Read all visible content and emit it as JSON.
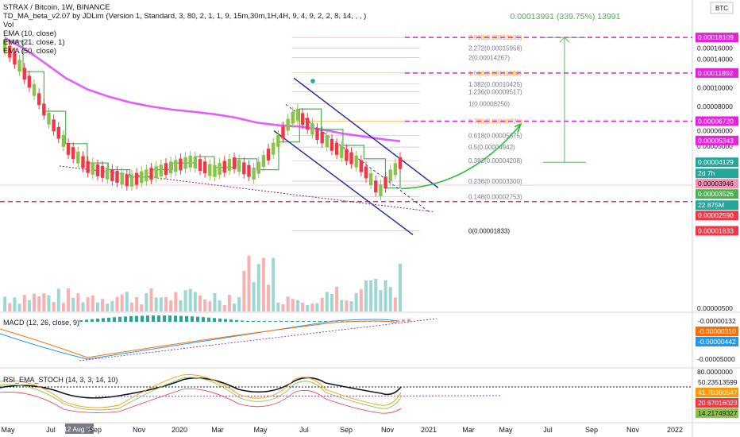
{
  "header": {
    "title": "STRAX / Bitcoin, 1W, BINANCE",
    "indicators": [
      "TD_MA_beta_v2.07 by JDLim (Version 1, Standard, 3, 80, 2, 1, 1, 9, 15m,30m,1H,4H, 9, 4, 9, 2, 2, 8, 14, , , )",
      "Vol",
      "EMA (10, close)",
      "EMA (21, close, 1)",
      "EMA (50, close)"
    ],
    "currency_badge": "BTC"
  },
  "projection_label": "0.00013991 (339.75%) 13991",
  "fib_levels": [
    {
      "label": "2.618(0.00018109)",
      "color": "#f7a21b"
    },
    {
      "label": "2.272(0.00015958)",
      "color": "#787b86"
    },
    {
      "label": "2(0.00014267)",
      "color": "#787b86"
    },
    {
      "label": "1.618(0.00011892)",
      "color": "#f7a21b"
    },
    {
      "label": "1.382(0.00010425)",
      "color": "#787b86"
    },
    {
      "label": "1.236(0.00009517)",
      "color": "#787b86"
    },
    {
      "label": "1(0.00008250)",
      "color": "#787b86"
    },
    {
      "label": "0.786(0.00006720)",
      "color": "#f7a21b"
    },
    {
      "label": "0.618(0.00005675)",
      "color": "#787b86"
    },
    {
      "label": "0.5(0.00004942)",
      "color": "#787b86"
    },
    {
      "label": "0.382(0.00004208)",
      "color": "#787b86"
    },
    {
      "label": "0.236(0.00003300)",
      "color": "#787b86"
    },
    {
      "label": "0.148(0.00002753)",
      "color": "#787b86"
    },
    {
      "label": "0(0.00001833)",
      "color": "#131722"
    }
  ],
  "price_axis": {
    "ticks": [
      "0.00016000",
      "0.00014000",
      "0.00012000",
      "0.00010000",
      "0.00008000",
      "0.00006000",
      "0.00005000",
      "0.00000500"
    ]
  },
  "price_tags": [
    {
      "text": "0.00018109",
      "bg": "#e91ede",
      "fg": "#ffffff"
    },
    {
      "text": "0.00011892",
      "bg": "#e91ede",
      "fg": "#ffffff"
    },
    {
      "text": "0.00006720",
      "bg": "#e91ede",
      "fg": "#ffffff"
    },
    {
      "text": "0.00005343",
      "bg": "#e91ede",
      "fg": "#ffffff"
    },
    {
      "text": "0.00004129",
      "bg": "#26a69a",
      "fg": "#ffffff"
    },
    {
      "text": "2d 7h",
      "bg": "#26a69a",
      "fg": "#ffffff"
    },
    {
      "text": "0.00003946",
      "bg": "#f48fb1",
      "fg": "#131722"
    },
    {
      "text": "0.00003526",
      "bg": "#4caf50",
      "fg": "#ffffff"
    },
    {
      "text": "22.875M",
      "bg": "#26a69a",
      "fg": "#ffffff"
    },
    {
      "text": "0.00002590",
      "bg": "#f23645",
      "fg": "#ffffff"
    },
    {
      "text": "0.00001833",
      "bg": "#f23645",
      "fg": "#ffffff"
    }
  ],
  "macd": {
    "label": "MACD (12, 26, close, 9)",
    "axis_ticks": [
      "-0.00005000"
    ],
    "tags": [
      {
        "text": "-0.00000132",
        "bg": "#ffffff",
        "fg": "#131722"
      },
      {
        "text": "-0.00000310",
        "bg": "#ff6d00",
        "fg": "#ffffff"
      },
      {
        "text": "-0.00000442",
        "bg": "#2196f3",
        "fg": "#ffffff"
      }
    ]
  },
  "rsi": {
    "label": "RSI_EMA_STOCH (14, 3, 3, 14, 10)",
    "axis_ticks": [
      "80.0000000"
    ],
    "tags": [
      {
        "text": "50.23513599",
        "bg": "#ffffff",
        "fg": "#131722"
      },
      {
        "text": "41.70360547",
        "bg": "#ff9800",
        "fg": "#ffffff"
      },
      {
        "text": "20.67016023",
        "bg": "#f23645",
        "fg": "#ffffff"
      },
      {
        "text": "14.21749327",
        "bg": "#8bc34a",
        "fg": "#131722"
      }
    ]
  },
  "time_axis": {
    "labels": [
      "May",
      "Jul",
      "12 Aug '19",
      "Sep",
      "Nov",
      "2020",
      "Mar",
      "May",
      "Jul",
      "Sep",
      "Nov",
      "2021",
      "Mar",
      "May",
      "Jul",
      "Sep",
      "Nov",
      "2022"
    ]
  },
  "chart_data": {
    "type": "candlestick",
    "title": "STRAX / Bitcoin, 1W, BINANCE",
    "yscale": "log",
    "ylim": [
      1.15e-05,
      0.000205
    ],
    "x": [
      "2019-04-29",
      "2022-01-03"
    ],
    "price_path_x": [
      "2019-05-06",
      "2019-06-01",
      "2019-07-01",
      "2019-08-01",
      "2019-09-01",
      "2019-10-01",
      "2019-11-01",
      "2019-12-01",
      "2020-01-01",
      "2020-02-01",
      "2020-03-01",
      "2020-04-01",
      "2020-05-01",
      "2020-06-01",
      "2020-07-01",
      "2020-08-01",
      "2020-09-01",
      "2020-10-01",
      "2020-11-01",
      "2020-11-22"
    ],
    "price_path_y": [
      0.000165,
      0.000115,
      7.2e-05,
      4.9e-05,
      3.9e-05,
      3.6e-05,
      3.3e-05,
      3.6e-05,
      3.9e-05,
      4.2e-05,
      3.7e-05,
      4.1e-05,
      3.6e-05,
      5e-05,
      7.4e-05,
      5.8e-05,
      4.8e-05,
      4.1e-05,
      2.9e-05,
      4.1e-05
    ],
    "ema50_y": [
      0.00018,
      0.00016,
      0.000135,
      0.000112,
      9.8e-05,
      9e-05,
      8.4e-05,
      8e-05,
      7.7e-05,
      7.5e-05,
      7.3e-05,
      7e-05,
      6.6e-05,
      6.4e-05,
      6.3e-05,
      6.1e-05,
      5.8e-05,
      5.6e-05,
      5.4e-05,
      5.3e-05
    ],
    "fib_prices": [
      0.00018109,
      0.00015958,
      0.00014267,
      0.00011892,
      0.00010425,
      9.517e-05,
      8.25e-05,
      6.72e-05,
      5.675e-05,
      4.942e-05,
      4.208e-05,
      3.3e-05,
      2.753e-05,
      1.833e-05
    ],
    "horizontal_levels": [
      0.00018109,
      0.00011892,
      6.72e-05,
      2.59e-05,
      3.526e-05
    ],
    "last_close": 4.129e-05,
    "volume_last": "22.875M"
  }
}
